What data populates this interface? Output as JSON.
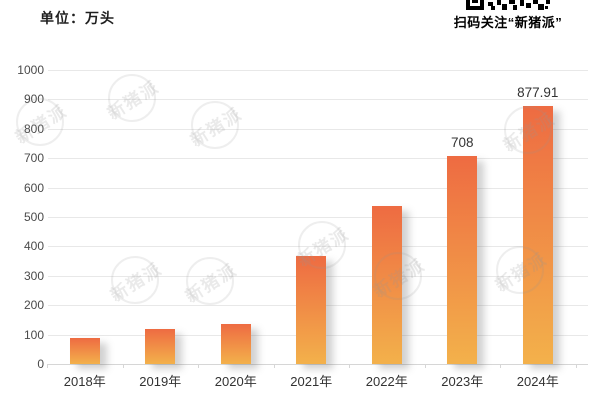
{
  "header": {
    "unit_label": "单位：万头",
    "qr_caption": "扫码关注“新猪派”"
  },
  "watermark_text": "新猪派",
  "chart_data": {
    "type": "bar",
    "title": "",
    "unit": "万头",
    "categories": [
      "2018年",
      "2019年",
      "2020年",
      "2021年",
      "2022年",
      "2023年",
      "2024年"
    ],
    "values": [
      90,
      120,
      135,
      368,
      538,
      708,
      877.91
    ],
    "bar_labels": [
      "",
      "",
      "",
      "",
      "",
      "708",
      "877.91"
    ],
    "ylim": [
      0,
      1000
    ],
    "yticks": [
      0,
      100,
      200,
      300,
      400,
      500,
      600,
      700,
      800,
      900,
      1000
    ],
    "grid": true,
    "legend": "none",
    "bar_color_top": "#ee6b42",
    "bar_color_bottom": "#f3b14b"
  }
}
